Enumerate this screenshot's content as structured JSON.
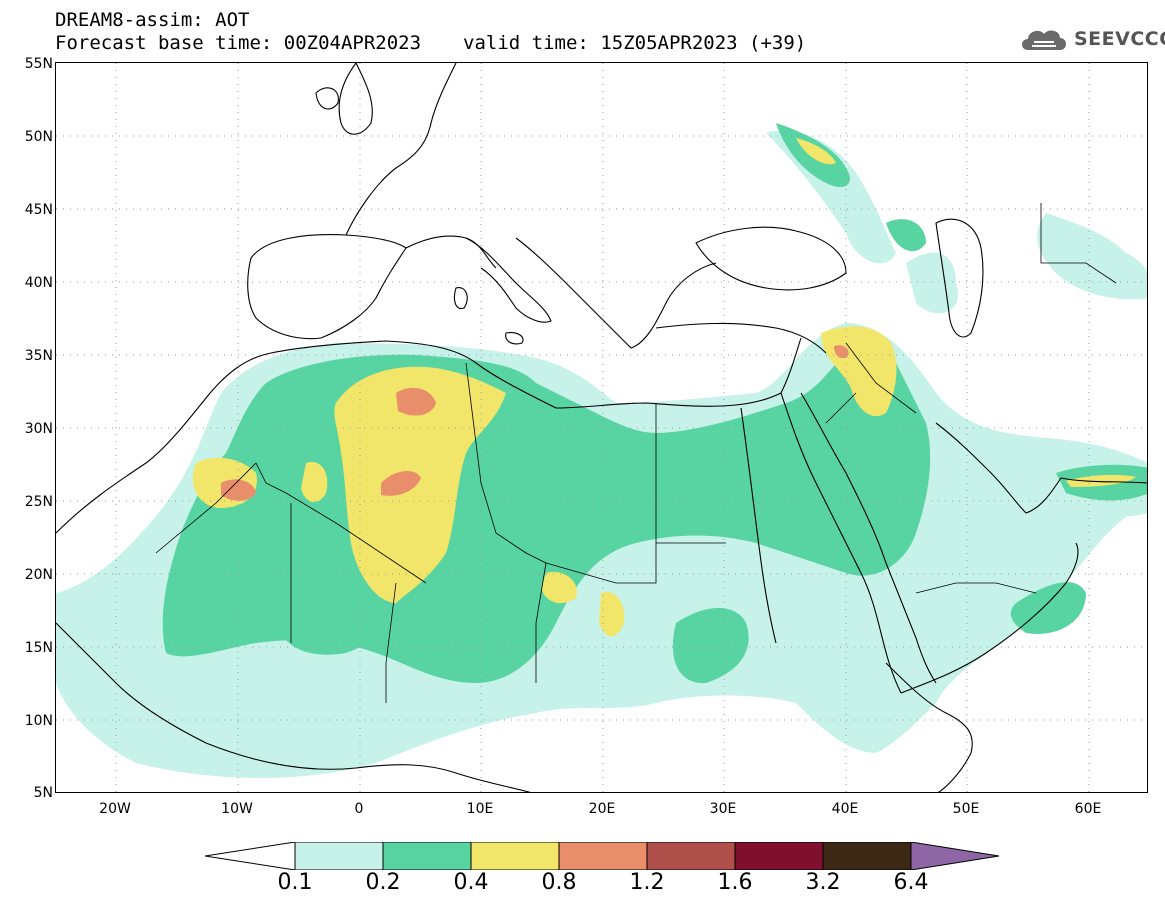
{
  "header": {
    "title_line1": "DREAM8-assim: AOT",
    "base_time": "Forecast base time: 00Z04APR2023",
    "valid_time": "valid time: 15Z05APR2023 (+39)",
    "brand": "SEEVCCC"
  },
  "map": {
    "lat_labels": [
      "55N",
      "50N",
      "45N",
      "40N",
      "35N",
      "30N",
      "25N",
      "20N",
      "15N",
      "10N",
      "5N"
    ],
    "lon_labels": [
      "20W",
      "10W",
      "0",
      "10E",
      "20E",
      "30E",
      "40E",
      "50E",
      "60E"
    ],
    "lat_range": [
      5,
      55
    ],
    "lon_range": [
      -25,
      65
    ],
    "grid": "dotted",
    "coast_color": "#000000"
  },
  "legend": {
    "ticks": [
      "0.1",
      "0.2",
      "0.4",
      "0.8",
      "1.2",
      "1.6",
      "3.2",
      "6.4"
    ],
    "colors": {
      "lt01": "#ffffff",
      "c1": "#c7f2ea",
      "c2": "#58d3a2",
      "c3": "#f2e66a",
      "c4": "#e98e6a",
      "c5": "#b0504b",
      "c6": "#7f0f2e",
      "c7": "#3d2816",
      "gt64": "#8e66a6"
    }
  },
  "aot_field": {
    "levels": [
      {
        "level": "0.1-0.2",
        "color": "#c7f2ea"
      },
      {
        "level": "0.2-0.4",
        "color": "#58d3a2"
      },
      {
        "level": "0.4-0.8",
        "color": "#f2e66a"
      },
      {
        "level": "0.8-1.2",
        "color": "#e98e6a"
      }
    ]
  }
}
